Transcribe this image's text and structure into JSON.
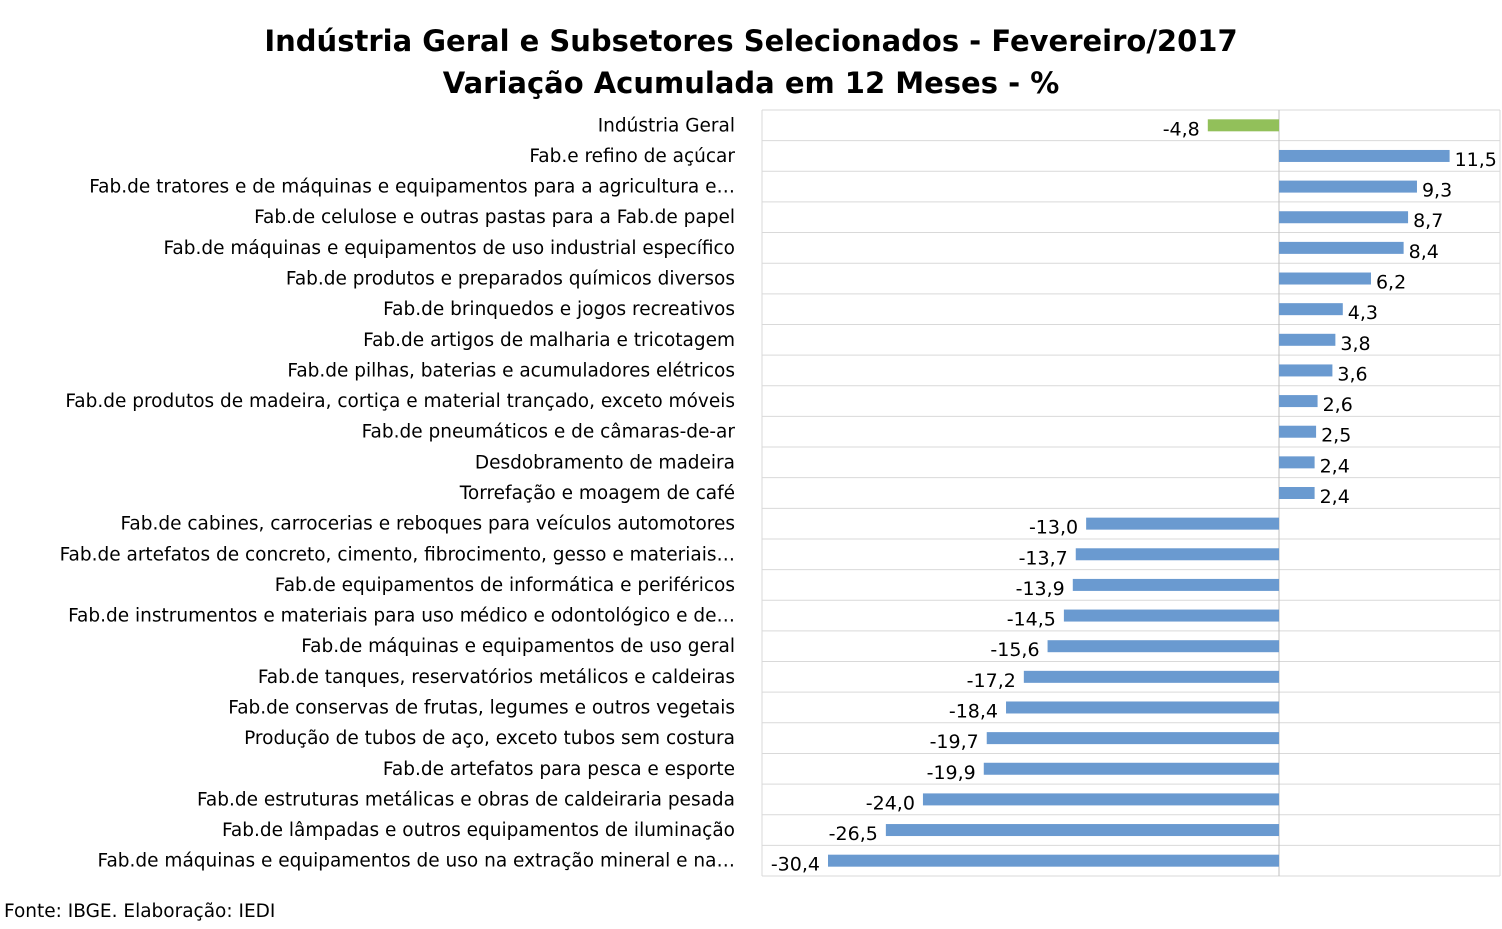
{
  "chart_data": {
    "type": "bar",
    "orientation": "horizontal",
    "title": "Indústria Geral e Subsetores Selecionados - Fevereiro/2017",
    "subtitle": "Variação Acumulada em 12 Meses - %",
    "categories": [
      "Indústria Geral",
      "Fab.e refino de açúcar",
      "Fab.de tratores e de máquinas e equipamentos para a agricultura e…",
      "Fab.de celulose e outras pastas para a Fab.de papel",
      "Fab.de máquinas e equipamentos de uso industrial específico",
      "Fab.de produtos e preparados químicos diversos",
      "Fab.de brinquedos e jogos recreativos",
      "Fab.de artigos de malharia e tricotagem",
      "Fab.de pilhas, baterias e acumuladores elétricos",
      "Fab.de produtos de madeira, cortiça e material trançado, exceto móveis",
      "Fab.de pneumáticos e de câmaras-de-ar",
      "Desdobramento de madeira",
      "Torrefação e moagem de café",
      "Fab.de cabines, carrocerias e reboques para veículos automotores",
      "Fab.de artefatos de concreto, cimento, fibrocimento, gesso e materiais…",
      "Fab.de equipamentos de informática e periféricos",
      "Fab.de instrumentos e materiais para uso médico e odontológico e de…",
      "Fab.de máquinas e equipamentos de uso geral",
      "Fab.de tanques, reservatórios metálicos e caldeiras",
      "Fab.de conservas de frutas, legumes e outros vegetais",
      "Produção de tubos de aço, exceto tubos sem costura",
      "Fab.de artefatos para pesca e esporte",
      "Fab.de estruturas metálicas e obras de caldeiraria pesada",
      "Fab.de lâmpadas e outros equipamentos de iluminação",
      "Fab.de máquinas e equipamentos de uso na extração mineral e na…"
    ],
    "values": [
      -4.8,
      11.5,
      9.3,
      8.7,
      8.4,
      6.2,
      4.3,
      3.8,
      3.6,
      2.6,
      2.5,
      2.4,
      2.4,
      -13.0,
      -13.7,
      -13.9,
      -14.5,
      -15.6,
      -17.2,
      -18.4,
      -19.7,
      -19.9,
      -24.0,
      -26.5,
      -30.4
    ],
    "value_labels": [
      "-4,8",
      "11,5",
      "9,3",
      "8,7",
      "8,4",
      "6,2",
      "4,3",
      "3,8",
      "3,6",
      "2,6",
      "2,5",
      "2,4",
      "2,4",
      "-13,0",
      "-13,7",
      "-13,9",
      "-14,5",
      "-15,6",
      "-17,2",
      "-18,4",
      "-19,7",
      "-19,9",
      "-24,0",
      "-26,5",
      "-30,4"
    ],
    "colors": {
      "highlight": "#92c05a",
      "default": "#6a9ad0"
    },
    "highlight_index": 0,
    "grid": true,
    "legend": "none"
  },
  "source": "Fonte: IBGE. Elaboração: IEDI"
}
